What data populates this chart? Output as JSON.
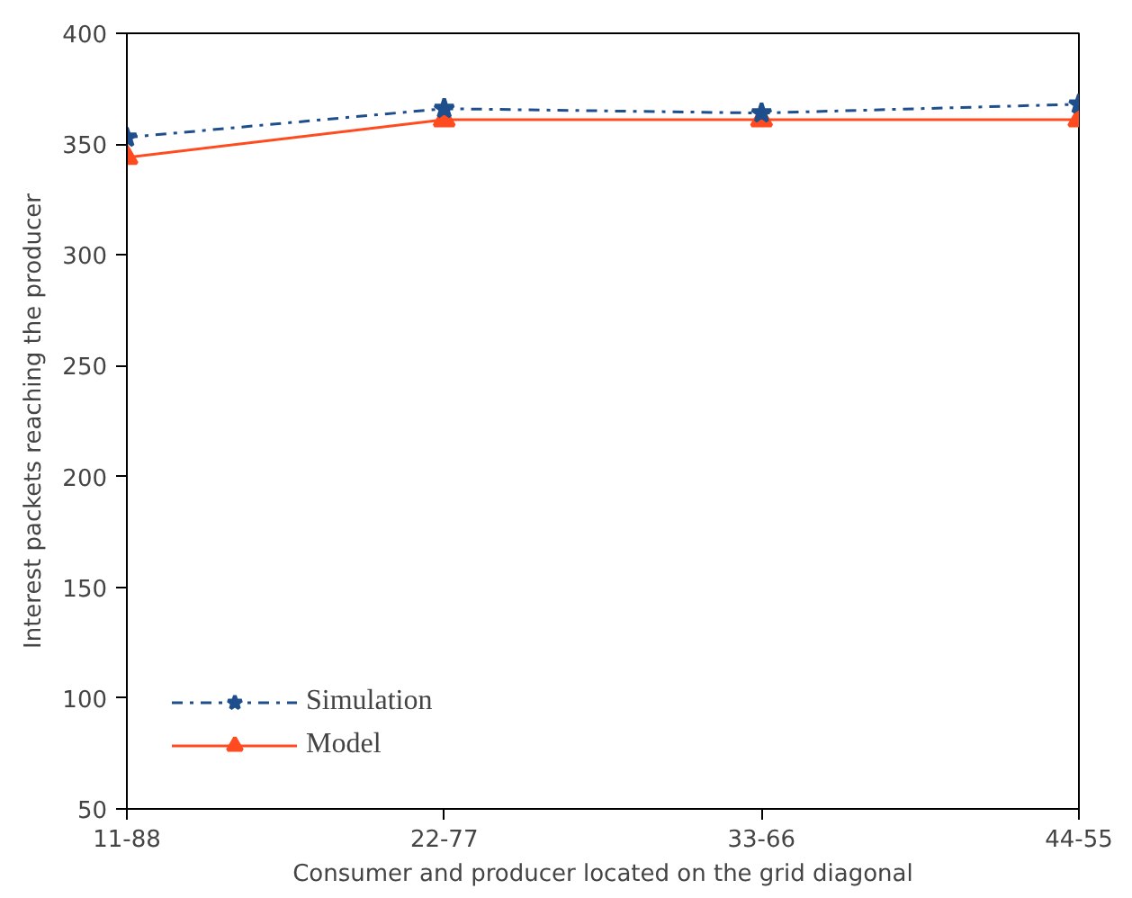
{
  "chart_data": {
    "type": "line",
    "xlabel": "Consumer and producer located on the grid diagonal",
    "ylabel": "Interest packets reaching the producer",
    "categories": [
      "11-88",
      "22-77",
      "33-66",
      "44-55"
    ],
    "series": [
      {
        "name": "Simulation",
        "color": "#1f4e8c",
        "values": [
          353,
          366,
          364,
          368
        ],
        "marker": "star",
        "line_style": "dashdot"
      },
      {
        "name": "Model",
        "color": "#ff4b1f",
        "values": [
          344,
          361,
          361,
          361
        ],
        "marker": "triangle",
        "line_style": "solid"
      }
    ],
    "ylim": [
      50,
      400
    ],
    "yticks": [
      50,
      100,
      150,
      200,
      250,
      300,
      350,
      400
    ],
    "grid": false,
    "legend": "bottom left"
  }
}
